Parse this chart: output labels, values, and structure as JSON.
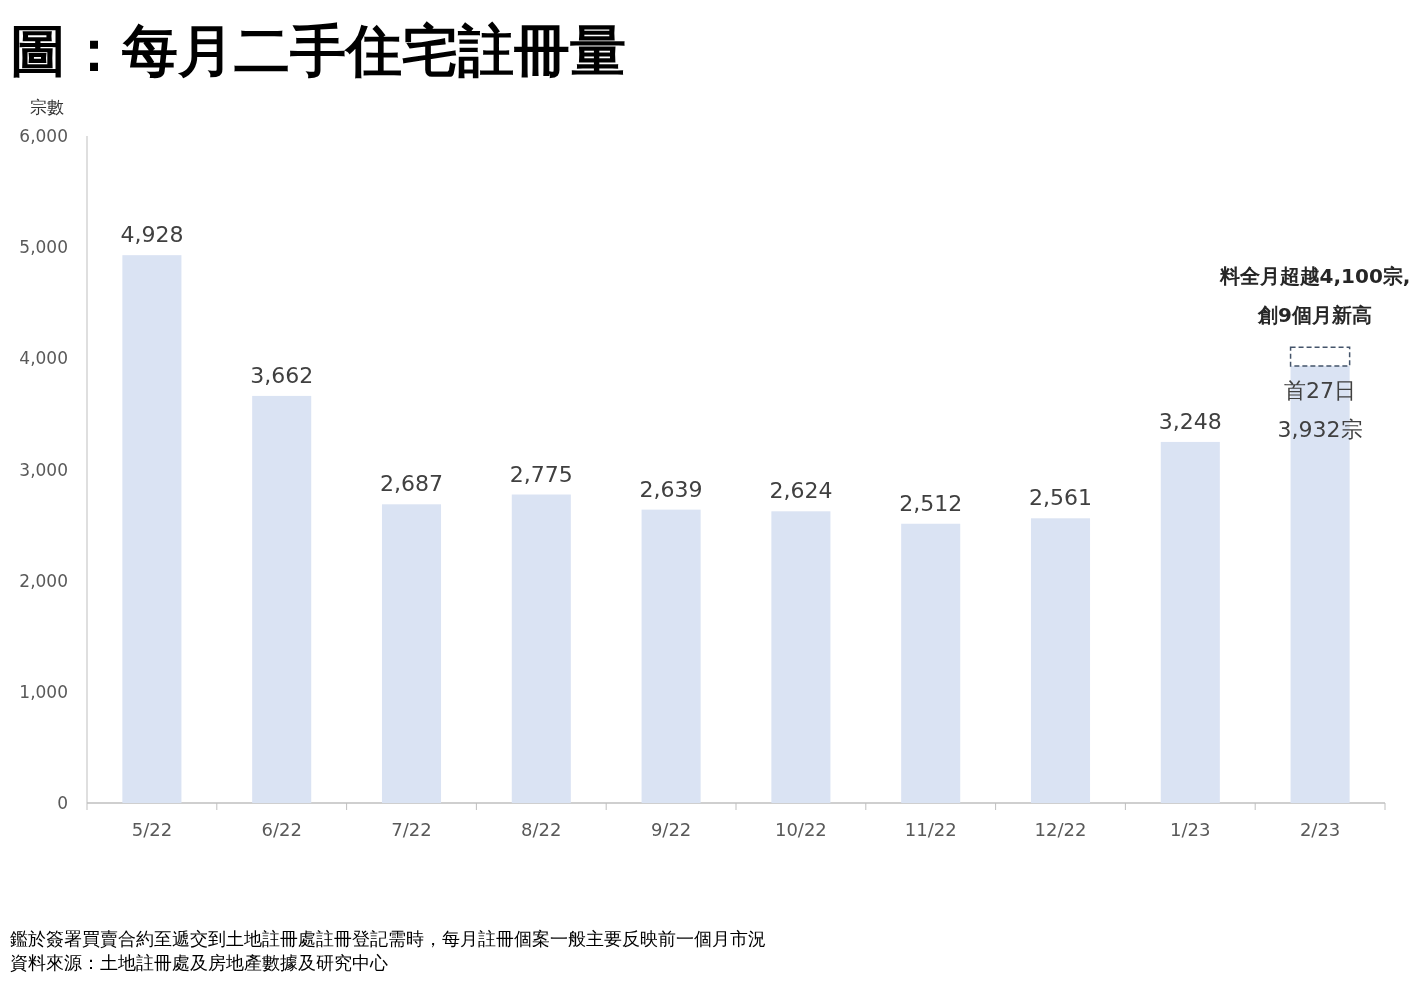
{
  "chart_data": {
    "type": "bar",
    "title": "圖：每月二手住宅註冊量",
    "ylabel": "宗數",
    "categories": [
      "5/22",
      "6/22",
      "7/22",
      "8/22",
      "9/22",
      "10/22",
      "11/22",
      "12/22",
      "1/23",
      "2/23"
    ],
    "stacked": true,
    "series": [
      {
        "color": "#dae3f3",
        "values": [
          4928,
          3662,
          2687,
          2775,
          2639,
          2624,
          2512,
          2561,
          3248,
          3932
        ],
        "value_labels": [
          "4,928",
          "3,662",
          "2,687",
          "2,775",
          "2,639",
          "2,624",
          "2,512",
          "2,561",
          "3,248",
          "首27日\n3,932宗"
        ]
      },
      {
        "color": "#44546a",
        "line_style": "dashed",
        "values": [
          null,
          null,
          null,
          null,
          null,
          null,
          null,
          null,
          null,
          168
        ]
      }
    ],
    "ylim": [
      0,
      6000
    ],
    "yticks": [
      {
        "value": 0,
        "label": "0"
      },
      {
        "value": 1000,
        "label": "1,000"
      },
      {
        "value": 2000,
        "label": "2,000"
      },
      {
        "value": 3000,
        "label": "3,000"
      },
      {
        "value": 4000,
        "label": "4,000"
      },
      {
        "value": 5000,
        "label": "5,000"
      },
      {
        "value": 6000,
        "label": "6,000"
      }
    ],
    "annotations": [
      {
        "text": "料全月超越4,100宗,\n創9個月新高",
        "x": "2/23",
        "y": 4100
      },
      "鑑於簽署買賣合約至遞交到土地註冊處註冊登記需時，每月註冊個案一般主要反映前一個月市況",
      "資料來源：土地註冊處及房地產數據及研究中心"
    ]
  }
}
